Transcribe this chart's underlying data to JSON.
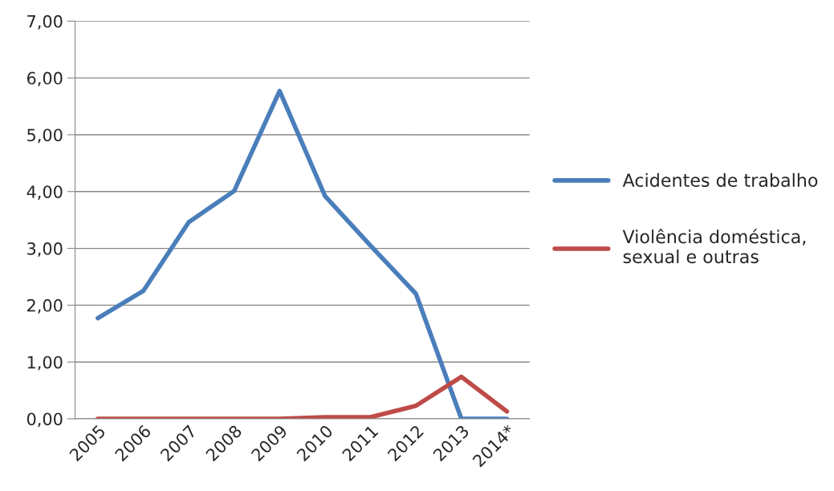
{
  "chart_data": {
    "type": "line",
    "categories": [
      "2005",
      "2006",
      "2007",
      "2008",
      "2009",
      "2010",
      "2011",
      "2012",
      "2013",
      "2014*"
    ],
    "series": [
      {
        "name": "Acidentes de trabalho",
        "color": "#4a7ebb",
        "values": [
          1.77,
          2.25,
          3.46,
          4.01,
          5.77,
          3.92,
          3.05,
          2.2,
          0,
          0
        ]
      },
      {
        "name": "Violência doméstica, sexual e outras",
        "color": "#be4b48",
        "values": [
          0,
          0,
          0,
          0,
          0,
          0.03,
          0.03,
          0.23,
          0.74,
          0.13
        ]
      }
    ],
    "ylim": [
      0,
      7
    ],
    "yticks": [
      {
        "value": 0,
        "label": "0,00"
      },
      {
        "value": 1,
        "label": "1,00"
      },
      {
        "value": 2,
        "label": "2,00"
      },
      {
        "value": 3,
        "label": "3,00"
      },
      {
        "value": 4,
        "label": "4,00"
      },
      {
        "value": 5,
        "label": "5,00"
      },
      {
        "value": 6,
        "label": "6,00"
      },
      {
        "value": 7,
        "label": "7,00"
      }
    ],
    "grid": "y",
    "legend": "right",
    "marker": "none",
    "line_style": "solid"
  }
}
